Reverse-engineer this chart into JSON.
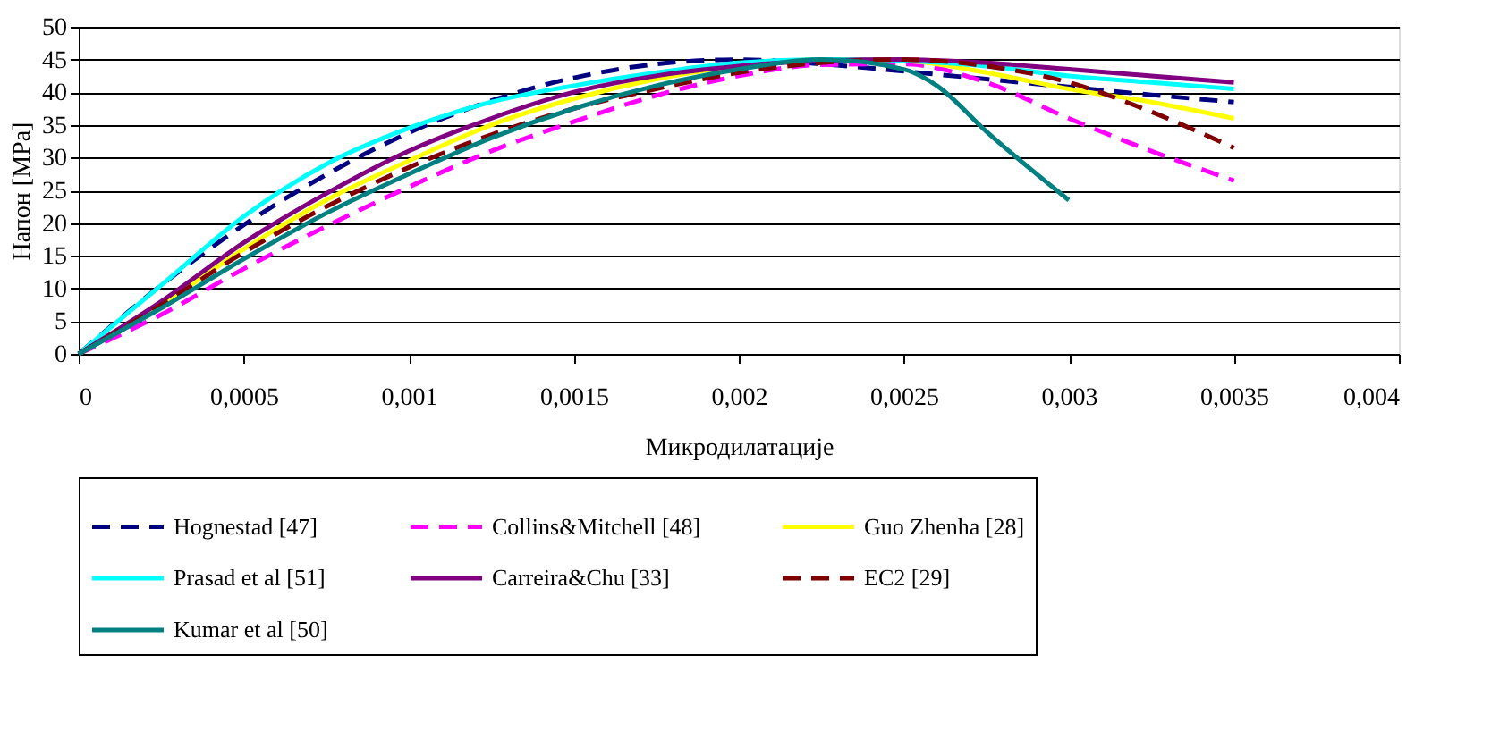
{
  "chart_data": {
    "type": "line",
    "xlabel": "Микродилатације",
    "ylabel": "Напон [MPa]",
    "x": [
      0,
      0.00025,
      0.0005,
      0.00075,
      0.001,
      0.00125,
      0.0015,
      0.00175,
      0.002,
      0.00225,
      0.0025,
      0.00275,
      0.003,
      0.00325,
      0.0035
    ],
    "xlim": [
      0,
      0.004
    ],
    "ylim": [
      0,
      50
    ],
    "xticks": [
      0,
      {
        "value": 0.0005,
        "label": "0,0005"
      },
      {
        "value": 0.001,
        "label": "0,001"
      },
      {
        "value": 0.0015,
        "label": "0,0015"
      },
      {
        "value": 0.002,
        "label": "0,002"
      },
      {
        "value": 0.0025,
        "label": "0,0025"
      },
      {
        "value": 0.003,
        "label": "0,003"
      },
      {
        "value": 0.0035,
        "label": "0,0035"
      },
      {
        "value": 0.004,
        "label": "0,004"
      }
    ],
    "yticks": [
      0,
      5,
      10,
      15,
      20,
      25,
      30,
      35,
      40,
      45,
      50
    ],
    "grid": "y",
    "legend": "bottom",
    "marker": "none",
    "series": [
      {
        "name": "Hognestad [47]",
        "color": "#000080",
        "line_style": "dashed",
        "values": [
          0,
          10.5,
          19.7,
          27.4,
          33.8,
          38.7,
          42.2,
          44.3,
          45,
          44.3,
          43.2,
          42,
          40.8,
          39.6,
          38.5
        ]
      },
      {
        "name": "Collins&Mitchell [48]",
        "color": "#ff00ff",
        "line_style": "dashed",
        "values": [
          0,
          6,
          13,
          19.5,
          25.5,
          31,
          35.5,
          39.5,
          42.5,
          44.2,
          44.3,
          41.5,
          36,
          31,
          26.5
        ]
      },
      {
        "name": "Guo Zhenha [28]",
        "color": "#ffff00",
        "line_style": "solid",
        "values": [
          0,
          7.5,
          16,
          23.5,
          29.5,
          35,
          39,
          42,
          44,
          45,
          44.8,
          43,
          40.5,
          38.5,
          36
        ]
      },
      {
        "name": "Prasad et al [51]",
        "color": "#00ffff",
        "line_style": "solid",
        "values": [
          0,
          10.5,
          21,
          29,
          34.5,
          38.5,
          41,
          43,
          44.5,
          45,
          44.8,
          44,
          42.5,
          41.5,
          40.5
        ]
      },
      {
        "name": "Carreira&Chu [33]",
        "color": "#800080",
        "line_style": "solid",
        "values": [
          0,
          8,
          17,
          24.5,
          31,
          36,
          40,
          42.5,
          44,
          44.8,
          45,
          44.5,
          43.5,
          42.5,
          41.5
        ]
      },
      {
        "name": "EC2 [29]",
        "color": "#800000",
        "line_style": "dashed",
        "values": [
          0,
          7.5,
          15.5,
          22.5,
          28.5,
          33.5,
          37.5,
          40.5,
          43,
          44.5,
          45,
          44,
          41.5,
          37,
          31.5
        ]
      },
      {
        "name": "Kumar et al [50]",
        "color": "#008080",
        "line_style": "solid",
        "x": [
          0,
          0.00025,
          0.0005,
          0.00075,
          0.001,
          0.00125,
          0.0015,
          0.00175,
          0.002,
          0.00225,
          0.0025,
          0.0026,
          0.00275,
          0.003
        ],
        "values": [
          0,
          7,
          14.5,
          21.5,
          27.5,
          33,
          37.5,
          41,
          43.5,
          45,
          43.5,
          41,
          34,
          23.5
        ]
      }
    ]
  }
}
